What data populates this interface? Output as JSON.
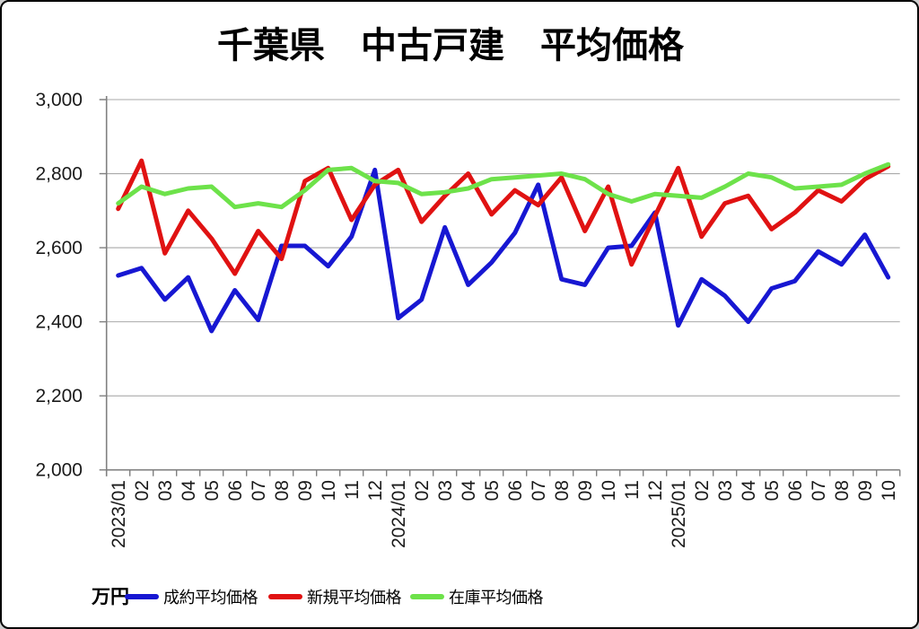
{
  "chart_data": {
    "type": "line",
    "title": "千葉県　中古戸建　平均価格",
    "unit_label": "万円",
    "ylim": [
      2000,
      3000
    ],
    "ytick_values": [
      3000,
      2800,
      2600,
      2400,
      2200,
      2000
    ],
    "ytick_labels": [
      "3,000",
      "2,800",
      "2,600",
      "2,400",
      "2,200",
      "2,000"
    ],
    "grid": true,
    "legend_position": "bottom",
    "categories": [
      "2023/01",
      "02",
      "03",
      "04",
      "05",
      "06",
      "07",
      "08",
      "09",
      "10",
      "11",
      "12",
      "2024/01",
      "02",
      "03",
      "04",
      "05",
      "06",
      "07",
      "08",
      "09",
      "10",
      "11",
      "12",
      "2025/01",
      "02",
      "03",
      "04",
      "05",
      "06",
      "07",
      "08",
      "09",
      "10"
    ],
    "series": [
      {
        "name": "成約平均価格",
        "color": "#1717d2",
        "values": [
          2525,
          2545,
          2460,
          2520,
          2375,
          2485,
          2405,
          2605,
          2605,
          2550,
          2630,
          2810,
          2410,
          2460,
          2655,
          2500,
          2560,
          2640,
          2770,
          2515,
          2500,
          2600,
          2605,
          2695,
          2390,
          2515,
          2470,
          2400,
          2490,
          2510,
          2590,
          2555,
          2635,
          2520
        ]
      },
      {
        "name": "新規平均価格",
        "color": "#e01212",
        "values": [
          2705,
          2835,
          2585,
          2700,
          2625,
          2530,
          2645,
          2570,
          2780,
          2815,
          2675,
          2770,
          2810,
          2670,
          2740,
          2800,
          2690,
          2755,
          2715,
          2790,
          2645,
          2765,
          2555,
          2685,
          2815,
          2630,
          2720,
          2740,
          2650,
          2695,
          2755,
          2725,
          2785,
          2820
        ]
      },
      {
        "name": "在庫平均価格",
        "color": "#6de24a",
        "values": [
          2720,
          2765,
          2745,
          2760,
          2765,
          2710,
          2720,
          2710,
          2755,
          2810,
          2815,
          2780,
          2775,
          2745,
          2750,
          2760,
          2785,
          2790,
          2795,
          2800,
          2785,
          2745,
          2725,
          2745,
          2740,
          2735,
          2765,
          2800,
          2790,
          2760,
          2765,
          2770,
          2800,
          2825
        ]
      }
    ],
    "colors": {
      "gridline": "#a9a9a9",
      "axis": "#808080",
      "tick_label": "#1a1a1a"
    }
  }
}
